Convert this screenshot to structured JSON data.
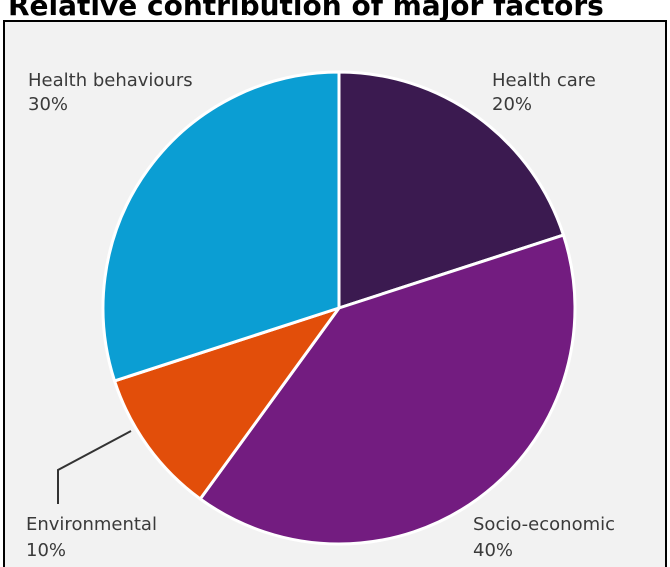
{
  "title": "Relative contribution of major factors",
  "chart_data": {
    "type": "pie",
    "start_angle_deg": 0,
    "direction": "clockwise",
    "slices": [
      {
        "label": "Health care",
        "value": 20,
        "value_label": "20%",
        "color": "#3b1a50"
      },
      {
        "label": "Socio-economic",
        "value": 40,
        "value_label": "40%",
        "color": "#731c80"
      },
      {
        "label": "Environmental",
        "value": 10,
        "value_label": "10%",
        "color": "#e24e0a"
      },
      {
        "label": "Health behaviours",
        "value": 30,
        "value_label": "30%",
        "color": "#0b9ed3"
      }
    ]
  }
}
